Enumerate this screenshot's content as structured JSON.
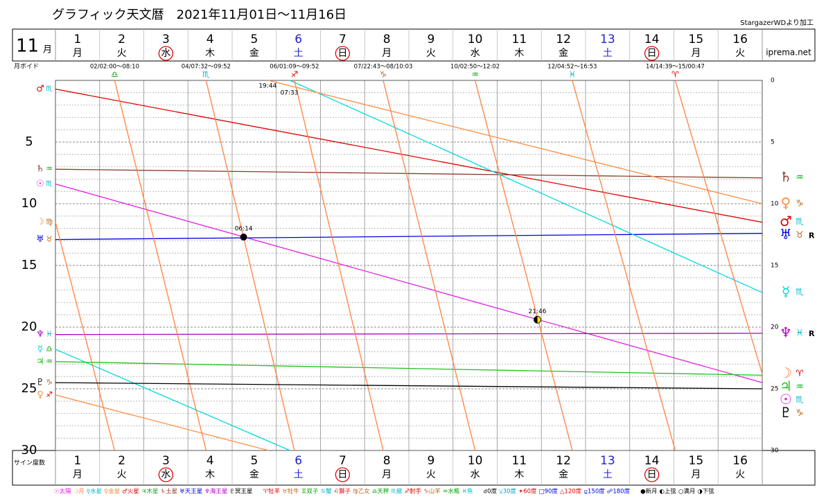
{
  "chart_data": {
    "type": "line",
    "title": "グラフィック天文暦　2021年11月01日～11月16日",
    "credit": "StargazerWDより加工",
    "month": "11",
    "month_unit": "月",
    "site": "iprema.net",
    "void_label": "月ボイド",
    "y_label": "サイン度数",
    "categories": [
      "1",
      "2",
      "3",
      "4",
      "5",
      "6",
      "7",
      "8",
      "9",
      "10",
      "11",
      "12",
      "13",
      "14",
      "15",
      "16"
    ],
    "weekdays": [
      "月",
      "火",
      "水",
      "木",
      "金",
      "土",
      "日",
      "月",
      "火",
      "水",
      "木",
      "金",
      "土",
      "日",
      "月",
      "火"
    ],
    "circled_days": [
      3,
      7,
      14
    ],
    "xlim": [
      0,
      16
    ],
    "xticks": [
      0,
      1,
      2,
      3,
      4,
      5,
      6,
      7,
      8,
      9,
      10,
      11,
      12,
      13,
      14,
      15,
      16
    ],
    "ylim": [
      0,
      30
    ],
    "y_inverted": true,
    "yticks": [
      0,
      5,
      10,
      15,
      20,
      25,
      30
    ],
    "minor_yticks": [
      1,
      2,
      3,
      4,
      6,
      7,
      8,
      9,
      11,
      12,
      13,
      14,
      16,
      17,
      18,
      19,
      21,
      22,
      23,
      24,
      26,
      27,
      28,
      29
    ],
    "grid": true,
    "element_colors": {
      "♈": "#e00000",
      "♌": "#e00000",
      "♐": "#e00000",
      "♉": "#b5651d",
      "♍": "#b5651d",
      "♑": "#b5651d",
      "♊": "#00a000",
      "♎": "#00a000",
      "♒": "#00a000",
      "♋": "#00b8c8",
      "♏": "#00b8c8",
      "♓": "#00b8c8"
    },
    "series": [
      {
        "name": "♂",
        "color": "#e00000",
        "x": [
          0,
          16
        ],
        "values": [
          0.7,
          11.5
        ],
        "sign_start": "♏",
        "sign_end": "♏"
      },
      {
        "name": "♄",
        "color": "#8b3a2a",
        "x": [
          0,
          16
        ],
        "values": [
          7.2,
          7.9
        ],
        "sign_start": "♒",
        "sign_end": "♒"
      },
      {
        "name": "☉",
        "color": "#e020e0",
        "x": [
          0,
          16
        ],
        "values": [
          8.4,
          24.5
        ],
        "sign_start": "♏",
        "sign_end": "♏"
      },
      {
        "name": "♅",
        "color": "#0000e0",
        "x": [
          0,
          16
        ],
        "values": [
          12.9,
          12.4
        ],
        "sign_start": "♉",
        "sign_end": "♉",
        "flag": "R"
      },
      {
        "name": "♆",
        "color": "#b000c0",
        "x": [
          0,
          16
        ],
        "values": [
          20.6,
          20.5
        ],
        "sign_start": "♓",
        "sign_end": "♓",
        "flag": "R"
      },
      {
        "name": "☿",
        "color": "#00d8e0",
        "x": [
          0,
          5.31,
          5.31,
          5.31,
          16
        ],
        "values": [
          21.8,
          30,
          null,
          0,
          17.2
        ],
        "sign_start": "♎",
        "sign_end": "♏",
        "ingress_time": "07:33"
      },
      {
        "name": "♃",
        "color": "#20c020",
        "x": [
          0,
          16
        ],
        "values": [
          22.8,
          23.9
        ],
        "sign_start": "♒",
        "sign_end": "♒"
      },
      {
        "name": "☽",
        "color": "#ff8040",
        "x": [
          0,
          1.34,
          1.34,
          1.34,
          3.41,
          3.41,
          3.41,
          5.41,
          5.41,
          5.41,
          7.42,
          7.42,
          7.42,
          9.5,
          9.5,
          9.5,
          11.7,
          11.7,
          11.7,
          14.03,
          14.03,
          14.03,
          16
        ],
        "values": [
          11.5,
          30,
          null,
          0,
          30,
          null,
          0,
          30,
          null,
          0,
          30,
          null,
          0,
          30,
          null,
          0,
          30,
          null,
          0,
          30,
          null,
          0,
          23.8
        ],
        "sign_start": "♍",
        "sign_end": "♈"
      },
      {
        "name": "♇",
        "color": "#000000",
        "x": [
          0,
          16
        ],
        "values": [
          24.5,
          25.0
        ],
        "sign_start": "♑",
        "sign_end": "♑"
      },
      {
        "name": "♀",
        "color": "#ff8c40",
        "x": [
          0,
          4.82,
          4.82,
          4.82,
          16
        ],
        "values": [
          25.5,
          30,
          null,
          0,
          10
        ],
        "sign_start": "♐",
        "sign_end": "♑",
        "ingress_time": "19:44"
      }
    ],
    "voids": [
      {
        "text": "02/02:00～08:10",
        "sign": "♎"
      },
      {
        "text": "04/07:32～09:52",
        "sign": "♏"
      },
      {
        "text": "06/01:09～09:52",
        "sign": "♐"
      },
      {
        "text": "07/22:43～08/10:03",
        "sign": "♑"
      },
      {
        "text": "10/02:50～12:02",
        "sign": "♒"
      },
      {
        "text": "12/04:52～16:53",
        "sign": "♓"
      },
      {
        "text": "14/14:39～15/00:47",
        "sign": "♈"
      }
    ],
    "phases": [
      {
        "time": "06:14",
        "x": 4.26,
        "value": 12.7,
        "kind": "new"
      },
      {
        "time": "21:46",
        "x": 10.91,
        "value": 19.4,
        "kind": "first"
      }
    ],
    "legend": [
      [
        {
          "text": "☉太陽",
          "color": "#e020e0"
        },
        {
          "text": "☽月",
          "color": "#ff8040"
        },
        {
          "text": "☿水星",
          "color": "#00b8c8"
        },
        {
          "text": "♀金星",
          "color": "#ff8c40"
        },
        {
          "text": "♂火星",
          "color": "#e00000"
        },
        {
          "text": "♃木星",
          "color": "#20a020"
        },
        {
          "text": "♄土星",
          "color": "#8b3a2a"
        },
        {
          "text": "♅天王星",
          "color": "#0000e0"
        },
        {
          "text": "♆海王星",
          "color": "#b000c0"
        },
        {
          "text": "♇冥王星",
          "color": "#000000"
        }
      ],
      [
        {
          "text": "♈牡羊",
          "color": "#e00000"
        },
        {
          "text": "♉牡牛",
          "color": "#b5651d"
        },
        {
          "text": "♊双子",
          "color": "#00a000"
        },
        {
          "text": "♋蟹",
          "color": "#00b8c8"
        },
        {
          "text": "♌獅子",
          "color": "#e00000"
        },
        {
          "text": "♍乙女",
          "color": "#b5651d"
        },
        {
          "text": "♎天秤",
          "color": "#00a000"
        },
        {
          "text": "♏蠍",
          "color": "#00b8c8"
        },
        {
          "text": "♐射手",
          "color": "#e00000"
        },
        {
          "text": "♑山羊",
          "color": "#b5651d"
        },
        {
          "text": "♒水瓶",
          "color": "#00a000"
        },
        {
          "text": "♓魚",
          "color": "#00b8c8"
        }
      ],
      [
        {
          "text": "☌0度",
          "color": "#000000"
        },
        {
          "text": "⚺30度",
          "color": "#00a0c0"
        },
        {
          "text": "✶60度",
          "color": "#e00000"
        },
        {
          "text": "□90度",
          "color": "#0000e0"
        },
        {
          "text": "△120度",
          "color": "#e00000"
        },
        {
          "text": "⚼150度",
          "color": "#0000e0"
        },
        {
          "text": "☍180度",
          "color": "#0000e0"
        }
      ],
      [
        {
          "text": "●新月",
          "color": "#000000"
        },
        {
          "text": "◐上弦",
          "color": "#000000"
        },
        {
          "text": "○満月",
          "color": "#000000"
        },
        {
          "text": "◑下弦",
          "color": "#000000"
        }
      ]
    ]
  }
}
